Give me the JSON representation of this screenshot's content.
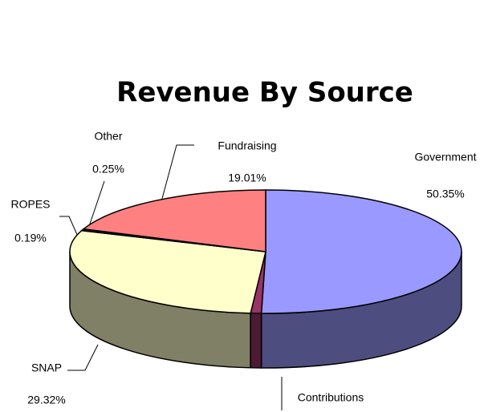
{
  "chart_data": {
    "type": "pie3d",
    "title": "Revenue By Source",
    "categories": [
      "Government",
      "Contributions",
      "SNAP",
      "ROPES",
      "Other",
      "Fundraising"
    ],
    "values": [
      50.35,
      0.88,
      29.32,
      0.19,
      0.25,
      19.01
    ],
    "value_labels": [
      "50.35%",
      null,
      "29.32%",
      "0.19%",
      "0.25%",
      "19.01%"
    ],
    "colors": [
      "#9999ff",
      "#993366",
      "#ffffcc",
      "#ccffff",
      "#660066",
      "#ff8080"
    ]
  }
}
